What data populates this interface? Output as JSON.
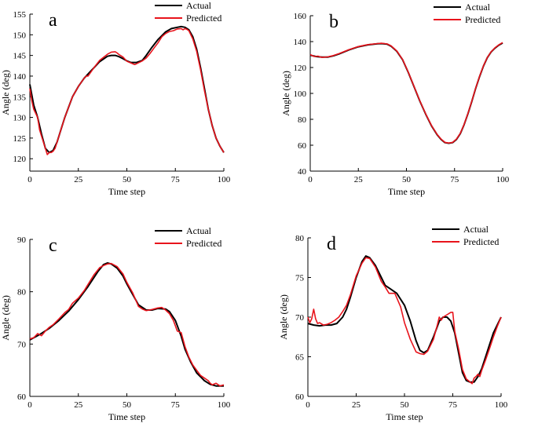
{
  "figure": {
    "actual_color": "#000000",
    "predicted_color": "#e8141c"
  },
  "chart_data": [
    {
      "type": "line",
      "panel_label": "a",
      "xlabel": "Time step",
      "ylabel": "Angle (deg)",
      "xlim": [
        0,
        100
      ],
      "ylim": [
        117,
        155
      ],
      "xticks": [
        0,
        25,
        50,
        75,
        100
      ],
      "yticks": [
        120,
        125,
        130,
        135,
        140,
        145,
        150,
        155
      ],
      "legend": [
        "Actual",
        "Predicted"
      ],
      "legend_position": "top-right",
      "series": [
        {
          "name": "Actual",
          "x": [
            0,
            2,
            4,
            6,
            8,
            10,
            12,
            14,
            16,
            18,
            20,
            22,
            25,
            28,
            30,
            33,
            36,
            40,
            42,
            44,
            46,
            48,
            50,
            52,
            55,
            58,
            60,
            63,
            66,
            70,
            73,
            76,
            78,
            80,
            82,
            84,
            86,
            88,
            90,
            92,
            94,
            96,
            98,
            100
          ],
          "y": [
            138,
            133,
            130,
            126,
            122.5,
            121.5,
            122,
            124,
            127,
            130,
            132.5,
            135,
            137.5,
            139.5,
            140.5,
            142,
            143.5,
            144.8,
            145,
            145,
            144.7,
            144.2,
            143.7,
            143.3,
            143.3,
            143.8,
            145,
            147,
            148.8,
            150.7,
            151.5,
            151.8,
            152,
            151.8,
            151.2,
            149.5,
            146.5,
            142,
            137,
            132,
            128,
            125,
            123,
            121.5
          ]
        },
        {
          "name": "Predicted",
          "x": [
            0,
            1,
            2,
            3,
            4,
            5,
            6,
            8,
            9,
            10,
            11,
            12,
            13,
            14,
            16,
            18,
            20,
            22,
            25,
            28,
            29,
            30,
            33,
            36,
            40,
            42,
            44,
            45,
            46,
            48,
            50,
            52,
            54,
            55,
            58,
            60,
            62,
            64,
            66,
            68,
            70,
            72,
            74,
            76,
            78,
            79,
            80,
            81,
            82,
            84,
            86,
            88,
            90,
            92,
            94,
            96,
            98,
            100
          ],
          "y": [
            137,
            134,
            132,
            131,
            130,
            127,
            125.5,
            122.5,
            121,
            121.5,
            121.5,
            121.8,
            122.5,
            124,
            127,
            130,
            132.5,
            135,
            137.5,
            139.5,
            140,
            140,
            142,
            143.8,
            145.3,
            145.8,
            145.9,
            145.6,
            145.2,
            144.6,
            143.6,
            143.2,
            142.8,
            143,
            143.7,
            144.4,
            145.5,
            146.8,
            148,
            149.5,
            150.3,
            150.8,
            151,
            151.4,
            151.5,
            151.2,
            151.5,
            151.3,
            151,
            149,
            146,
            141.5,
            136.5,
            132,
            128,
            125,
            123,
            121.5
          ]
        }
      ]
    },
    {
      "type": "line",
      "panel_label": "b",
      "xlabel": "Time step",
      "ylabel": "Angle (deg)",
      "xlim": [
        0,
        100
      ],
      "ylim": [
        40,
        160
      ],
      "xticks": [
        0,
        25,
        50,
        75,
        100
      ],
      "yticks": [
        40,
        60,
        80,
        100,
        120,
        140,
        160
      ],
      "legend": [
        "Actual",
        "Predicted"
      ],
      "legend_position": "top-right",
      "series": [
        {
          "name": "Actual",
          "x": [
            0,
            3,
            6,
            9,
            12,
            15,
            20,
            25,
            30,
            35,
            37,
            40,
            42,
            45,
            48,
            51,
            54,
            57,
            60,
            63,
            66,
            68,
            70,
            72,
            74,
            76,
            78,
            80,
            82,
            84,
            86,
            88,
            90,
            92,
            94,
            96,
            98,
            100
          ],
          "y": [
            129.5,
            128.5,
            128,
            128,
            129,
            130.5,
            133.5,
            136,
            137.5,
            138.3,
            138.5,
            138,
            136.5,
            132.5,
            126,
            116,
            105,
            94,
            84,
            75,
            68,
            64.5,
            62,
            61.5,
            62,
            64.5,
            69,
            76,
            84.5,
            94,
            104,
            113,
            121,
            127.5,
            132,
            135,
            137.3,
            139
          ]
        },
        {
          "name": "Predicted",
          "x": [
            0,
            2,
            4,
            6,
            9,
            12,
            15,
            20,
            25,
            30,
            35,
            37,
            40,
            42,
            45,
            48,
            51,
            54,
            57,
            60,
            63,
            66,
            68,
            70,
            72,
            74,
            76,
            78,
            80,
            82,
            84,
            86,
            88,
            90,
            92,
            94,
            96,
            98,
            100
          ],
          "y": [
            130,
            128.5,
            128.8,
            127.8,
            128.2,
            129.2,
            130.7,
            133.7,
            136.2,
            137.7,
            138.5,
            138.7,
            138.2,
            136.7,
            132.7,
            126.2,
            116.2,
            105.2,
            94.2,
            84.2,
            75.2,
            68.2,
            64.7,
            62.2,
            61.7,
            62.2,
            64.7,
            69.2,
            76.2,
            84.7,
            94.2,
            104.2,
            113.2,
            121.2,
            127.7,
            132.2,
            135.2,
            137.5,
            139.3
          ]
        }
      ]
    },
    {
      "type": "line",
      "panel_label": "c",
      "xlabel": "Time step",
      "ylabel": "Angle (deg)",
      "xlim": [
        0,
        100
      ],
      "ylim": [
        60,
        90
      ],
      "xticks": [
        0,
        25,
        50,
        75,
        100
      ],
      "yticks": [
        60,
        70,
        80,
        90
      ],
      "legend": [
        "Actual",
        "Predicted"
      ],
      "legend_position": "top-right",
      "series": [
        {
          "name": "Actual",
          "x": [
            0,
            5,
            10,
            15,
            20,
            25,
            30,
            35,
            38,
            40,
            42,
            45,
            48,
            50,
            53,
            56,
            60,
            63,
            66,
            70,
            72,
            75,
            78,
            80,
            83,
            86,
            90,
            93,
            96,
            100
          ],
          "y": [
            70.8,
            71.8,
            73,
            74.5,
            76.3,
            78.5,
            81,
            83.8,
            85.2,
            85.5,
            85.3,
            84.5,
            83,
            81.5,
            79.5,
            77.5,
            76.5,
            76.5,
            76.8,
            76.7,
            76.2,
            74.5,
            71.5,
            69,
            66.5,
            64.5,
            63,
            62.3,
            62,
            62
          ]
        },
        {
          "name": "Predicted",
          "x": [
            0,
            2,
            4,
            6,
            8,
            10,
            12,
            15,
            18,
            20,
            22,
            25,
            28,
            30,
            33,
            36,
            38,
            40,
            42,
            45,
            48,
            50,
            53,
            56,
            58,
            60,
            63,
            66,
            68,
            70,
            72,
            74,
            76,
            78,
            80,
            82,
            84,
            86,
            88,
            90,
            92,
            93,
            94,
            96,
            98,
            100
          ],
          "y": [
            71,
            71.2,
            72,
            71.6,
            72.5,
            73.2,
            73.7,
            74.8,
            76,
            76.6,
            77.8,
            78.8,
            80.2,
            81.4,
            83.2,
            84.6,
            85,
            85.3,
            85.4,
            84.8,
            83.4,
            81.8,
            79.8,
            77.2,
            76.7,
            76.4,
            76.6,
            76.9,
            77,
            76.5,
            75.8,
            74.5,
            72.5,
            72.2,
            69.5,
            67.5,
            66,
            65,
            64,
            63.5,
            63,
            62.5,
            62.2,
            62.5,
            62,
            62.2
          ]
        }
      ]
    },
    {
      "type": "line",
      "panel_label": "d",
      "xlabel": "Time step",
      "ylabel": "Angle (deg)",
      "xlim": [
        0,
        100
      ],
      "ylim": [
        60,
        80
      ],
      "xticks": [
        0,
        25,
        50,
        75,
        100
      ],
      "yticks": [
        60,
        65,
        70,
        75,
        80
      ],
      "legend": [
        "Actual",
        "Predicted"
      ],
      "legend_position": "top-right",
      "series": [
        {
          "name": "Actual",
          "x": [
            0,
            3,
            6,
            9,
            12,
            15,
            18,
            20,
            22,
            25,
            28,
            30,
            32,
            35,
            38,
            40,
            43,
            46,
            50,
            53,
            56,
            58,
            60,
            62,
            65,
            68,
            70,
            72,
            74,
            76,
            78,
            80,
            82,
            84,
            86,
            88,
            90,
            92,
            94,
            96,
            98,
            100
          ],
          "y": [
            69.2,
            69,
            68.9,
            69,
            69,
            69.2,
            70,
            71,
            72.5,
            75,
            77,
            77.7,
            77.5,
            76.5,
            75,
            74,
            73.5,
            73,
            71.5,
            69.5,
            67,
            65.8,
            65.5,
            65.8,
            67.5,
            69.5,
            70,
            70,
            69.5,
            68,
            65.5,
            63,
            62,
            61.8,
            61.8,
            62.5,
            63.5,
            65,
            66.5,
            68,
            69,
            70
          ]
        },
        {
          "name": "Predicted",
          "x": [
            0,
            1,
            2,
            3,
            4,
            5,
            6,
            8,
            10,
            12,
            14,
            16,
            18,
            20,
            22,
            25,
            28,
            30,
            32,
            35,
            38,
            40,
            42,
            45,
            48,
            50,
            53,
            56,
            58,
            60,
            62,
            65,
            67,
            68,
            69,
            70,
            72,
            74,
            75,
            76,
            78,
            80,
            82,
            84,
            85,
            86,
            87,
            88,
            89,
            90,
            92,
            94,
            96,
            98,
            100
          ],
          "y": [
            70,
            69.3,
            69.8,
            71,
            69.8,
            69.2,
            69.3,
            69,
            69.1,
            69.3,
            69.6,
            70,
            70.7,
            71.5,
            72.8,
            75.2,
            76.8,
            77.5,
            77.4,
            76.3,
            74.5,
            73.8,
            73,
            73,
            71.3,
            69.3,
            67.2,
            65.6,
            65.4,
            65.3,
            65.7,
            67.2,
            69,
            70,
            69.6,
            70,
            70.3,
            70.6,
            70.6,
            68.2,
            66,
            63.4,
            62.2,
            61.8,
            61.6,
            62.3,
            62.5,
            62.8,
            62.5,
            63.3,
            64.6,
            66,
            67.5,
            68.8,
            70
          ]
        }
      ]
    }
  ]
}
